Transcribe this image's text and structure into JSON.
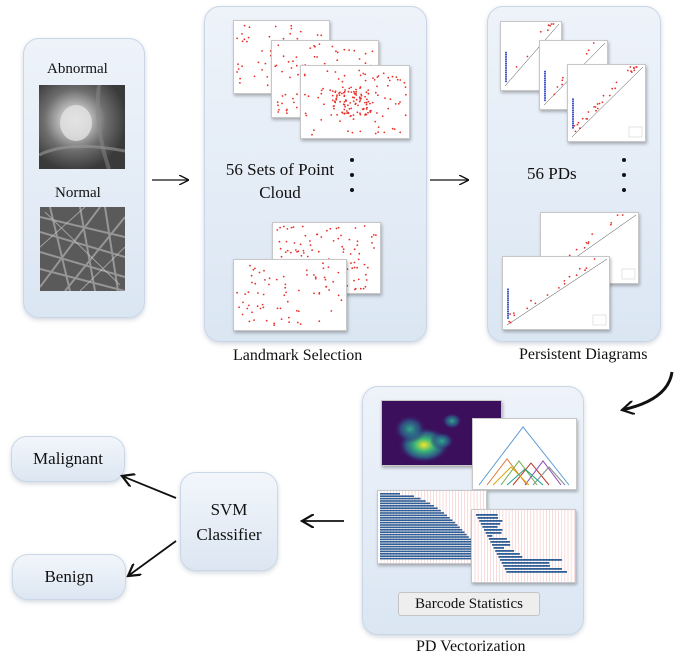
{
  "input": {
    "abnormal_label": "Abnormal",
    "normal_label": "Normal"
  },
  "landmark": {
    "center_text": "56 Sets of Point Cloud",
    "caption": "Landmark Selection"
  },
  "persistence": {
    "center_text": "56 PDs",
    "caption": "Persistent Diagrams"
  },
  "vectorization": {
    "badge": "Barcode Statistics",
    "caption": "PD Vectorization"
  },
  "classifier": {
    "label": "SVM Classifier"
  },
  "outputs": {
    "malignant": "Malignant",
    "benign": "Benign"
  },
  "colors": {
    "points": "#e8302a",
    "bars": "#2f5f96",
    "heatmap_bg": "#3b0f5c",
    "panel": "#e3ebf5"
  }
}
